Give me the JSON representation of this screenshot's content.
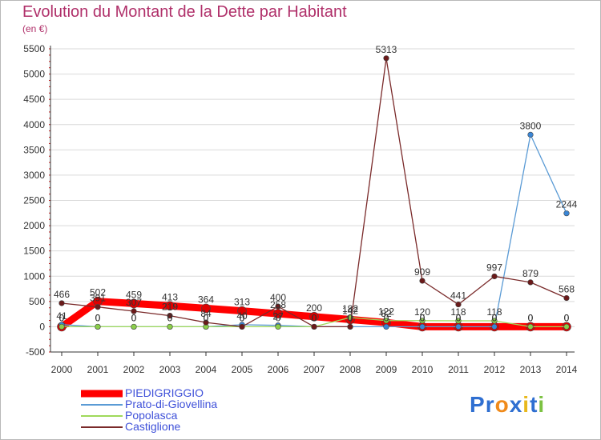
{
  "colors": {
    "title": "#b0306a",
    "legend_text": "#3f51d9",
    "axis": "#333333",
    "grid": "#d9d9d9",
    "tick_mark": "#d01717"
  },
  "logo": {
    "text": "Proxiti",
    "letters": [
      "P",
      "r",
      "o",
      "x",
      "i",
      "t",
      "i"
    ],
    "letter_colors": [
      "#2f6fd1",
      "#2f6fd1",
      "#f08a1a",
      "#2f6fd1",
      "#e8b81c",
      "#2f6fd1",
      "#7cc242"
    ]
  },
  "chart_data": {
    "type": "line",
    "title": "Evolution du Montant de la Dette par Habitant",
    "subtitle": "(en €)",
    "xlabel": "",
    "ylabel": "",
    "x": [
      "2000",
      "2001",
      "2002",
      "2003",
      "2004",
      "2005",
      "2006",
      "2007",
      "2008",
      "2009",
      "2010",
      "2011",
      "2012",
      "2013",
      "2014"
    ],
    "ylim": [
      -500,
      5500
    ],
    "yticks": [
      "-500",
      "0",
      "500",
      "1000",
      "1500",
      "2000",
      "2500",
      "3000",
      "3500",
      "4000",
      "4500",
      "5000",
      "5500"
    ],
    "grid": true,
    "legend_position": "bottom-left",
    "series": [
      {
        "name": "PIEDIGRIGGIO",
        "color": "#ff0000",
        "marker_color": "#e00000",
        "width": 9,
        "values": [
          0,
          502,
          459,
          413,
          364,
          313,
          258,
          200,
          142,
          82,
          0,
          0,
          0,
          0,
          0
        ],
        "labels": [
          "0",
          "502",
          "459",
          "413",
          "364",
          "313",
          "258",
          "200",
          "142",
          "82",
          "0",
          "0",
          "0",
          "0",
          "0"
        ]
      },
      {
        "name": "Prato-di-Giovellina",
        "color": "#5b9bd5",
        "marker_color": "#3a86d6",
        "width": 1.3,
        "values": [
          41,
          0,
          0,
          0,
          0,
          40,
          27,
          0,
          0,
          0,
          0,
          0,
          0,
          3800,
          2244
        ],
        "labels": [
          "41",
          "0",
          "0",
          "0",
          "0",
          "40",
          "27",
          "0",
          "0",
          "0",
          "0",
          "0",
          "0",
          "3800",
          "2244"
        ]
      },
      {
        "name": "Popolasca",
        "color": "#9fd95a",
        "marker_color": "#8bcf4a",
        "width": 1.3,
        "values": [
          0,
          0,
          0,
          0,
          0,
          0,
          0,
          0,
          182,
          122,
          120,
          118,
          118,
          0,
          0
        ],
        "labels": [
          "0",
          "0",
          "0",
          "0",
          "0",
          "0",
          "0",
          "0",
          "182",
          "122",
          "120",
          "118",
          "118",
          "0",
          "0"
        ]
      },
      {
        "name": "Castiglione",
        "color": "#7a2a2a",
        "marker_color": "#6b1a1a",
        "width": 1.3,
        "values": [
          466,
          391,
          307,
          219,
          84,
          0,
          400,
          0,
          0,
          5313,
          909,
          441,
          997,
          879,
          568
        ],
        "labels": [
          "466",
          "391",
          "307",
          "219",
          "84",
          "0",
          "400",
          "0",
          "0",
          "5313",
          "909",
          "441",
          "997",
          "879",
          "568"
        ]
      }
    ]
  }
}
